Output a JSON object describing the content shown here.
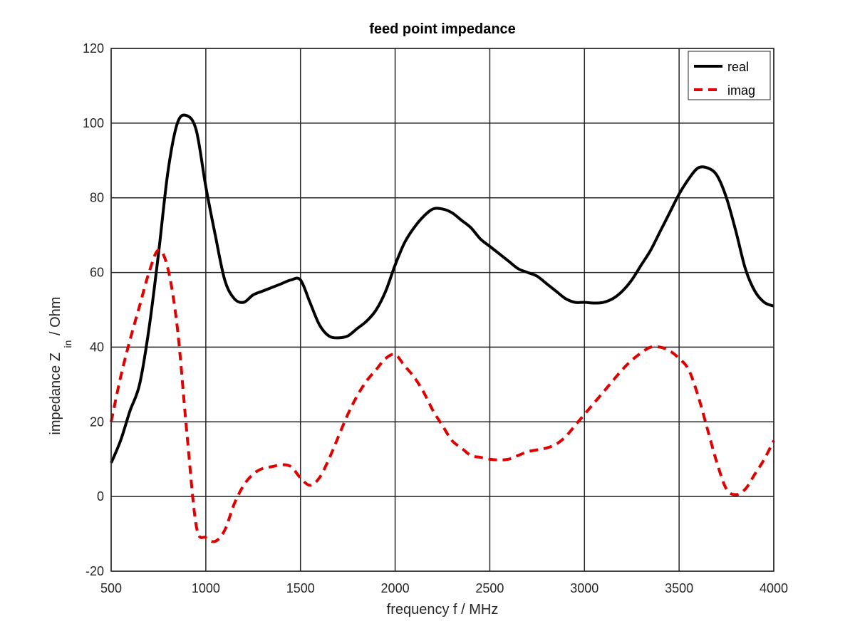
{
  "chart_data": {
    "type": "line",
    "title": "feed point impedance",
    "xlabel": "frequency f / MHz",
    "ylabel": {
      "prefix": "impedance Z",
      "subscript": "in",
      "suffix": "/ Ohm"
    },
    "xlim": [
      500,
      4000
    ],
    "ylim": [
      -20,
      120
    ],
    "xticks": [
      500,
      1000,
      1500,
      2000,
      2500,
      3000,
      3500,
      4000
    ],
    "yticks": [
      -20,
      0,
      20,
      40,
      60,
      80,
      100,
      120
    ],
    "grid": true,
    "legend_position": "top-right",
    "series": [
      {
        "name": "real",
        "color": "#000000",
        "style": "solid",
        "x": [
          500,
          550,
          600,
          650,
          700,
          750,
          800,
          850,
          900,
          950,
          1000,
          1050,
          1100,
          1150,
          1200,
          1250,
          1300,
          1350,
          1400,
          1450,
          1500,
          1550,
          1600,
          1650,
          1700,
          1750,
          1800,
          1850,
          1900,
          1950,
          2000,
          2050,
          2100,
          2150,
          2200,
          2250,
          2300,
          2350,
          2400,
          2450,
          2500,
          2550,
          2600,
          2650,
          2700,
          2750,
          2800,
          2850,
          2900,
          2950,
          3000,
          3050,
          3100,
          3150,
          3200,
          3250,
          3300,
          3350,
          3400,
          3450,
          3500,
          3550,
          3600,
          3650,
          3700,
          3750,
          3800,
          3850,
          3900,
          3950,
          4000
        ],
        "y": [
          9,
          15,
          23,
          30,
          45,
          65,
          87,
          100,
          102,
          98,
          83,
          70,
          58,
          53,
          52,
          54,
          55,
          56,
          57,
          58,
          58,
          52,
          46,
          43,
          42.5,
          43,
          45,
          47,
          50,
          55,
          62,
          68,
          72,
          75,
          77,
          77,
          76,
          74,
          72,
          69,
          67,
          65,
          63,
          61,
          60,
          59,
          57,
          55,
          53,
          52,
          52,
          51.8,
          52,
          53,
          55,
          58,
          62,
          66,
          71,
          76,
          81,
          85,
          88,
          88,
          86,
          80,
          71,
          61,
          55,
          52,
          51
        ]
      },
      {
        "name": "imag",
        "color": "#e00000",
        "style": "dashed",
        "x": [
          500,
          550,
          600,
          650,
          700,
          750,
          800,
          850,
          900,
          950,
          1000,
          1050,
          1100,
          1150,
          1200,
          1250,
          1300,
          1350,
          1400,
          1450,
          1500,
          1550,
          1600,
          1650,
          1700,
          1750,
          1800,
          1850,
          1900,
          1950,
          2000,
          2050,
          2100,
          2150,
          2200,
          2250,
          2300,
          2350,
          2400,
          2450,
          2500,
          2550,
          2600,
          2650,
          2700,
          2750,
          2800,
          2850,
          2900,
          2950,
          3000,
          3050,
          3100,
          3150,
          3200,
          3250,
          3300,
          3350,
          3400,
          3450,
          3500,
          3550,
          3600,
          3650,
          3700,
          3750,
          3800,
          3850,
          3900,
          3950,
          4000
        ],
        "y": [
          20,
          32,
          42,
          51,
          60,
          66,
          61,
          45,
          17,
          -8,
          -11,
          -12,
          -9,
          -2,
          3,
          6,
          7.5,
          8,
          8.5,
          8,
          5,
          3,
          5,
          10,
          16,
          22,
          27,
          31,
          34,
          37,
          38,
          35,
          32,
          28,
          23,
          19,
          15,
          13,
          11,
          10.5,
          10,
          9.8,
          10,
          11,
          12,
          12.5,
          13,
          14,
          16,
          19,
          22,
          25,
          28,
          31,
          34,
          36.5,
          38.5,
          40,
          40,
          39,
          37,
          34,
          27,
          18,
          9,
          2,
          0.5,
          2,
          6,
          10,
          15
        ]
      }
    ]
  }
}
